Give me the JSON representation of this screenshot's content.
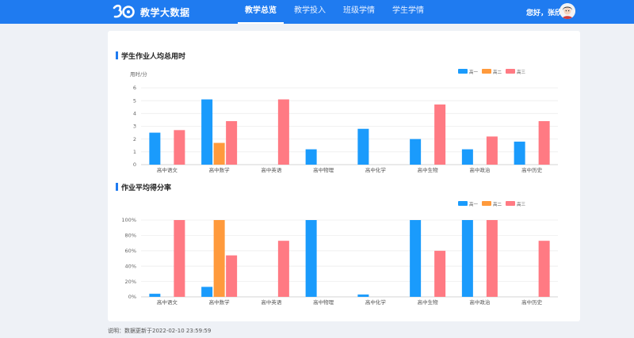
{
  "header": {
    "app_title": "教学大数据",
    "nav": [
      {
        "label": "教学总览",
        "active": true
      },
      {
        "label": "教学投入",
        "active": false
      },
      {
        "label": "班级学情",
        "active": false
      },
      {
        "label": "学生学情",
        "active": false
      }
    ],
    "greeting": "您好，张欣"
  },
  "sections": {
    "homework_time_title": "学生作业人均总用时",
    "homework_score_title": "作业平均得分率"
  },
  "footer": {
    "note": "说明：数据更新于2022-02-10 23:59:59"
  },
  "colors": {
    "primary": "#1f7bf0",
    "series": [
      "#1a9bfc",
      "#ff9a3c",
      "#ff7a83"
    ]
  },
  "chart_data": [
    {
      "type": "bar",
      "title": "学生作业人均总用时",
      "ylabel": "用时/分",
      "ylim": [
        0,
        6
      ],
      "yticks": [
        "0",
        "1",
        "2",
        "3",
        "4",
        "5",
        "6"
      ],
      "categories": [
        "高中语文",
        "高中数学",
        "高中英语",
        "高中物理",
        "高中化学",
        "高中生物",
        "高中政治",
        "高中历史"
      ],
      "legend_position": "top-right",
      "grid": true,
      "series": [
        {
          "name": "高一",
          "values": [
            2.5,
            5.1,
            0,
            1.2,
            2.8,
            2.0,
            1.2,
            1.8
          ]
        },
        {
          "name": "高二",
          "values": [
            0,
            1.7,
            0,
            0,
            0,
            0,
            0,
            0
          ]
        },
        {
          "name": "高三",
          "values": [
            2.7,
            3.4,
            5.1,
            0,
            0,
            4.7,
            2.2,
            3.4
          ]
        }
      ]
    },
    {
      "type": "bar",
      "title": "作业平均得分率",
      "ylabel": "",
      "ylim": [
        0,
        100
      ],
      "yticks": [
        "0%",
        "20%",
        "40%",
        "60%",
        "80%",
        "100%"
      ],
      "categories": [
        "高中语文",
        "高中数学",
        "高中英语",
        "高中物理",
        "高中化学",
        "高中生物",
        "高中政治",
        "高中历史"
      ],
      "legend_position": "top-right",
      "grid": true,
      "series": [
        {
          "name": "高一",
          "values": [
            4,
            13,
            0,
            100,
            3,
            100,
            100,
            0
          ]
        },
        {
          "name": "高二",
          "values": [
            0,
            100,
            0,
            0,
            0,
            0,
            0,
            0
          ]
        },
        {
          "name": "高三",
          "values": [
            100,
            54,
            73,
            0,
            0,
            60,
            100,
            73
          ]
        }
      ]
    }
  ]
}
